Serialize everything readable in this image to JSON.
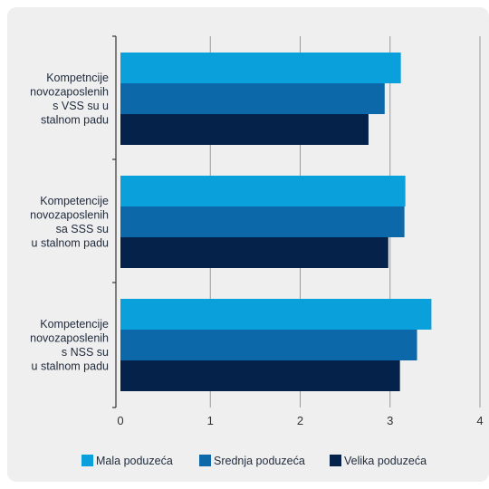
{
  "chart_data": {
    "type": "bar",
    "orientation": "horizontal",
    "categories": [
      [
        "Kompetncije",
        "novozaposlenih",
        "s VSS su u",
        "stalnom padu"
      ],
      [
        "Kompetencije",
        "novozaposlenih",
        "sa SSS su",
        "u stalnom padu"
      ],
      [
        "Kompetencije",
        "novozaposlenih",
        "s NSS su",
        "u stalnom padu"
      ]
    ],
    "series": [
      {
        "name": "Mala poduzeća",
        "color": "#0aa0dc",
        "values": [
          3.12,
          3.17,
          3.46
        ]
      },
      {
        "name": "Srednja poduzeća",
        "color": "#0c68a8",
        "values": [
          2.94,
          3.16,
          3.3
        ]
      },
      {
        "name": "Velika poduzeća",
        "color": "#04224a",
        "values": [
          2.76,
          2.98,
          3.11
        ]
      }
    ],
    "xlim": [
      0,
      4
    ],
    "xticks": [
      "0",
      "1",
      "2",
      "3",
      "4"
    ],
    "grid": "vertical",
    "legend_position": "bottom"
  }
}
